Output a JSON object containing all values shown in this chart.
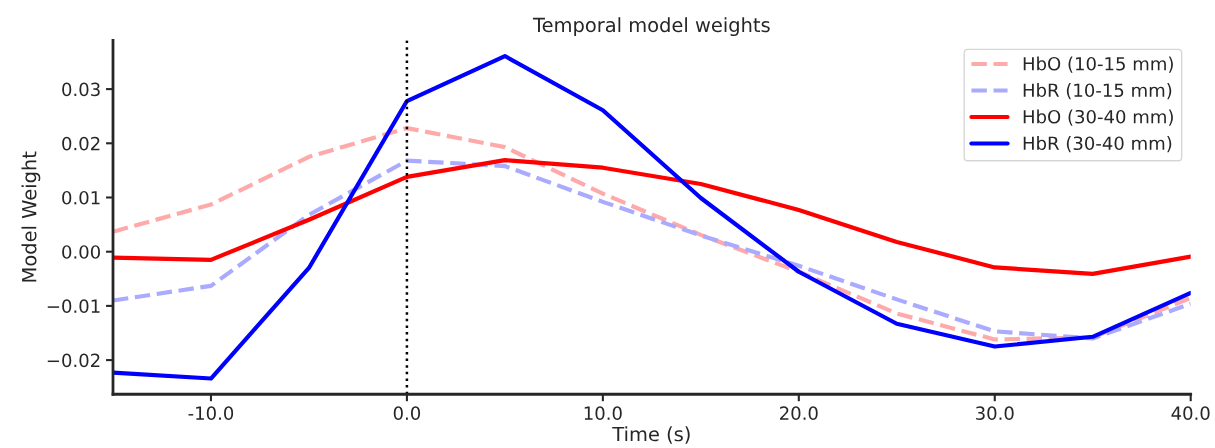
{
  "chart_data": {
    "type": "line",
    "title": "Temporal model weights",
    "xlabel": "Time (s)",
    "ylabel": "Model Weight",
    "x": [
      -15,
      -10,
      -5,
      0,
      5,
      10,
      15,
      20,
      25,
      30,
      35,
      40
    ],
    "series": [
      {
        "name": "HbO (10-15 mm)",
        "color": "#ffaaaa",
        "line_style": "dashed",
        "values": [
          0.0037,
          0.0087,
          0.0175,
          0.0228,
          0.0193,
          0.0107,
          0.0031,
          -0.0037,
          -0.0114,
          -0.0162,
          -0.0158,
          -0.0085
        ]
      },
      {
        "name": "HbR (10-15 mm)",
        "color": "#aaaaff",
        "line_style": "dashed",
        "values": [
          -0.009,
          -0.0063,
          0.0068,
          0.0168,
          0.0158,
          0.0092,
          0.003,
          -0.0026,
          -0.0088,
          -0.0147,
          -0.016,
          -0.0096
        ]
      },
      {
        "name": "HbO (30-40 mm)",
        "color": "#ff0000",
        "line_style": "solid",
        "values": [
          -0.0011,
          -0.0015,
          0.0059,
          0.0138,
          0.0169,
          0.0155,
          0.0125,
          0.0077,
          0.0018,
          -0.0029,
          -0.0041,
          -0.0009
        ]
      },
      {
        "name": "HbR (30-40 mm)",
        "color": "#0000ff",
        "line_style": "solid",
        "values": [
          -0.0223,
          -0.0234,
          -0.003,
          0.0278,
          0.0361,
          0.0261,
          0.0099,
          -0.0037,
          -0.0133,
          -0.0175,
          -0.0157,
          -0.0076
        ]
      }
    ],
    "xlim": [
      -15,
      40
    ],
    "ylim": [
      -0.0263,
      0.039
    ],
    "xticks": [
      {
        "value": -10,
        "label": "-10.0"
      },
      {
        "value": 0,
        "label": "0.0"
      },
      {
        "value": 10,
        "label": "10.0"
      },
      {
        "value": 20,
        "label": "20.0"
      },
      {
        "value": 30,
        "label": "30.0"
      },
      {
        "value": 40,
        "label": "40.0"
      }
    ],
    "yticks": [
      {
        "value": -0.02,
        "label": "−0.02"
      },
      {
        "value": -0.01,
        "label": "−0.01"
      },
      {
        "value": 0.0,
        "label": "0.00"
      },
      {
        "value": 0.01,
        "label": "0.01"
      },
      {
        "value": 0.02,
        "label": "0.02"
      },
      {
        "value": 0.03,
        "label": "0.03"
      }
    ],
    "ref_lines": [
      {
        "axis": "x",
        "value": 0,
        "color": "#000000",
        "line_style": "dotted"
      }
    ],
    "grid": false,
    "legend": "top right"
  }
}
